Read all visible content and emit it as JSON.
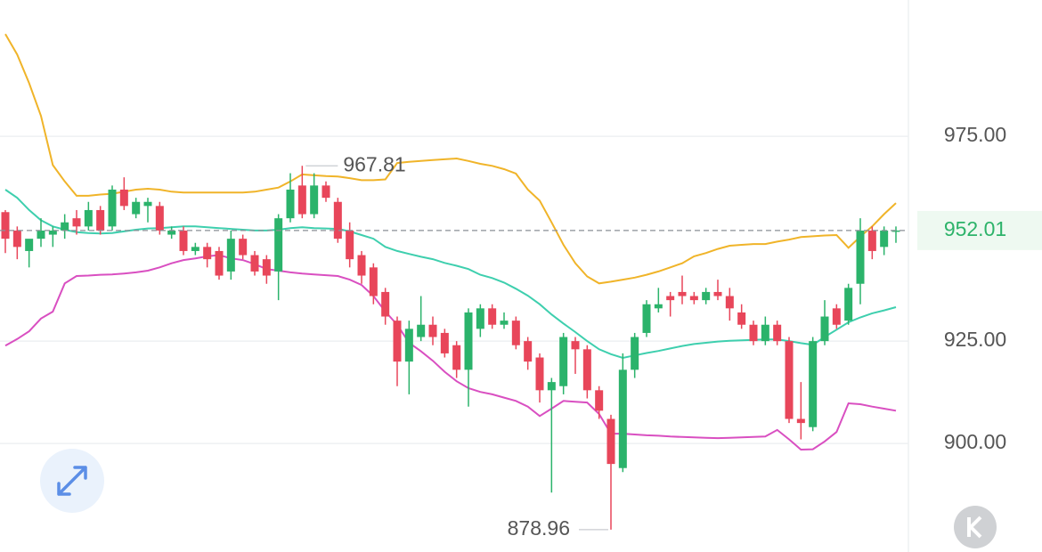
{
  "chart_data": {
    "type": "candlestick",
    "ylim": [
      873.5,
      1008.3
    ],
    "yticks": [
      {
        "value": 900,
        "label": "900.00"
      },
      {
        "value": 925,
        "label": "925.00"
      },
      {
        "value": 975,
        "label": "975.00"
      }
    ],
    "grid": true,
    "up_color": "#2bb36b",
    "down_color": "#e8465a",
    "ohlc": [
      [
        956.5,
        957,
        946.5,
        950
      ],
      [
        952,
        953,
        945,
        948
      ],
      [
        947,
        949,
        943,
        950
      ],
      [
        950,
        955,
        948,
        952
      ],
      [
        951,
        953,
        948,
        952
      ],
      [
        952,
        956,
        950,
        954
      ],
      [
        955,
        957,
        951,
        953
      ],
      [
        953,
        959,
        952,
        957
      ],
      [
        957,
        958,
        951,
        952
      ],
      [
        953,
        963,
        952,
        962
      ],
      [
        962,
        965,
        957,
        958
      ],
      [
        956,
        960,
        955,
        959
      ],
      [
        958,
        960,
        954,
        959
      ],
      [
        958,
        959,
        951,
        952
      ],
      [
        951,
        953,
        950,
        952
      ],
      [
        952,
        953,
        946,
        947
      ],
      [
        947,
        949,
        946,
        948
      ],
      [
        948,
        949,
        943,
        945
      ],
      [
        947,
        948,
        940,
        941
      ],
      [
        942,
        952,
        940,
        950
      ],
      [
        950,
        951,
        945,
        946
      ],
      [
        946,
        947,
        941,
        942
      ],
      [
        945,
        946,
        939,
        941
      ],
      [
        942,
        956,
        935,
        955
      ],
      [
        955,
        966,
        954,
        962
      ],
      [
        963,
        967.81,
        955,
        956
      ],
      [
        956,
        966,
        955,
        963
      ],
      [
        963,
        964,
        959,
        960
      ],
      [
        959,
        960,
        949,
        950
      ],
      [
        952,
        954,
        943,
        945
      ],
      [
        946,
        947,
        939,
        941
      ],
      [
        943,
        944,
        934,
        936
      ],
      [
        937,
        938,
        929,
        931
      ],
      [
        930,
        931,
        914,
        920
      ],
      [
        920,
        930,
        912,
        928
      ],
      [
        926,
        936,
        925,
        929
      ],
      [
        929,
        931,
        924,
        926
      ],
      [
        927,
        928,
        921,
        922
      ],
      [
        924,
        925,
        916,
        918
      ],
      [
        918,
        933,
        909,
        932
      ],
      [
        928,
        934,
        926,
        933
      ],
      [
        933,
        934,
        928,
        929
      ],
      [
        929,
        932,
        928,
        930
      ],
      [
        930,
        931,
        923,
        924
      ],
      [
        925,
        926,
        918,
        920
      ],
      [
        921,
        922,
        910,
        913
      ],
      [
        913,
        916,
        888,
        915
      ],
      [
        914,
        927,
        912,
        926
      ],
      [
        925,
        926,
        917,
        923
      ],
      [
        923,
        924,
        911,
        913
      ],
      [
        913,
        914,
        906,
        908
      ],
      [
        906,
        907,
        878.96,
        895
      ],
      [
        894,
        922,
        893,
        918
      ],
      [
        918,
        927,
        916,
        926
      ],
      [
        927,
        935,
        926,
        934
      ],
      [
        933,
        938,
        932,
        934
      ],
      [
        936,
        937,
        931,
        935
      ],
      [
        937,
        941,
        934,
        936
      ],
      [
        936,
        937,
        934,
        935
      ],
      [
        935,
        938,
        934,
        937
      ],
      [
        937,
        940,
        935,
        936
      ],
      [
        936,
        938,
        930,
        933
      ],
      [
        932,
        934,
        928,
        929
      ],
      [
        929,
        930,
        924,
        925
      ],
      [
        925,
        931,
        924,
        929
      ],
      [
        929,
        930,
        924,
        925
      ],
      [
        925,
        926,
        905,
        906
      ],
      [
        906,
        915,
        901,
        905
      ],
      [
        904,
        926,
        903,
        925
      ],
      [
        925,
        935,
        924,
        931
      ],
      [
        933,
        934,
        928,
        929
      ],
      [
        930,
        939,
        929,
        938
      ],
      [
        939,
        955,
        934,
        952
      ],
      [
        952,
        953,
        945,
        947
      ],
      [
        948,
        953,
        946,
        952
      ],
      [
        952,
        953,
        949,
        952.01
      ]
    ],
    "bands": [
      {
        "color": "#f0b429",
        "values": [
          1000,
          995,
          988,
          980,
          968,
          964,
          960.5,
          960.5,
          960.8,
          961,
          961.5,
          962,
          962.2,
          962,
          961.5,
          961.3,
          961.3,
          961.3,
          961.3,
          961.3,
          961.3,
          961.5,
          962,
          962.5,
          964,
          965.7,
          965.5,
          965.3,
          965.2,
          964.8,
          964.3,
          964.3,
          964.5,
          968.5,
          968.8,
          969,
          969.2,
          969.4,
          969.6,
          969,
          968.3,
          967.8,
          967,
          965.9,
          962,
          959.3,
          954,
          948.5,
          944,
          940.8,
          939.1,
          939.5,
          940,
          940.5,
          941.2,
          942,
          943,
          944,
          945.7,
          946.5,
          947.5,
          948.3,
          948.5,
          948.7,
          948.7,
          949.3,
          949.8,
          950.4,
          950.6,
          950.8,
          950.9,
          947.8,
          950.5,
          953,
          956,
          958.7
        ]
      },
      {
        "color": "#3ecfae",
        "values": [
          962,
          960,
          957,
          954.5,
          953,
          952.2,
          951.6,
          951.4,
          951.3,
          951.4,
          951.8,
          952.2,
          952.5,
          952.6,
          952.8,
          953,
          953,
          952.8,
          952.6,
          952.4,
          952.2,
          952,
          952,
          952.2,
          952.6,
          952.8,
          952.6,
          952.5,
          952.4,
          951.8,
          950.9,
          950,
          948,
          947,
          946.3,
          945.6,
          945,
          944.1,
          943.4,
          942.6,
          941.2,
          940.4,
          939.3,
          937.8,
          936.1,
          934,
          931.5,
          929.3,
          927.2,
          925,
          923,
          921.8,
          920.9,
          921.5,
          922.1,
          922.6,
          923.2,
          923.8,
          924.3,
          924.6,
          924.9,
          925.1,
          925.2,
          925.3,
          925.4,
          925.4,
          925,
          924.5,
          924.1,
          926,
          927.8,
          929.6,
          930.8,
          931.8,
          932.5,
          933.3
        ]
      },
      {
        "color": "#d94fc1",
        "values": [
          923.9,
          925.5,
          927.4,
          930.5,
          932.2,
          939.1,
          940.9,
          941,
          941.2,
          941.3,
          941.5,
          941.8,
          942.2,
          943,
          944,
          944.8,
          945.2,
          945.7,
          946,
          945.2,
          944.8,
          943.8,
          942.6,
          942.2,
          941.8,
          941.5,
          941.3,
          941.1,
          940.9,
          940,
          938.7,
          936,
          932.2,
          929,
          924.6,
          922.5,
          920.2,
          917.5,
          915.2,
          913.5,
          912.6,
          912,
          911.2,
          910.4,
          909,
          906.7,
          908.5,
          910.4,
          910.2,
          910,
          907.2,
          902.4,
          902.4,
          902.2,
          902,
          901.9,
          901.7,
          901.6,
          901.5,
          901.4,
          901.3,
          901.4,
          901.5,
          901.6,
          901.7,
          903.3,
          901,
          898.5,
          898.6,
          900.5,
          902.8,
          909.8,
          909.6,
          909,
          908.5,
          908
        ]
      }
    ]
  }
}
